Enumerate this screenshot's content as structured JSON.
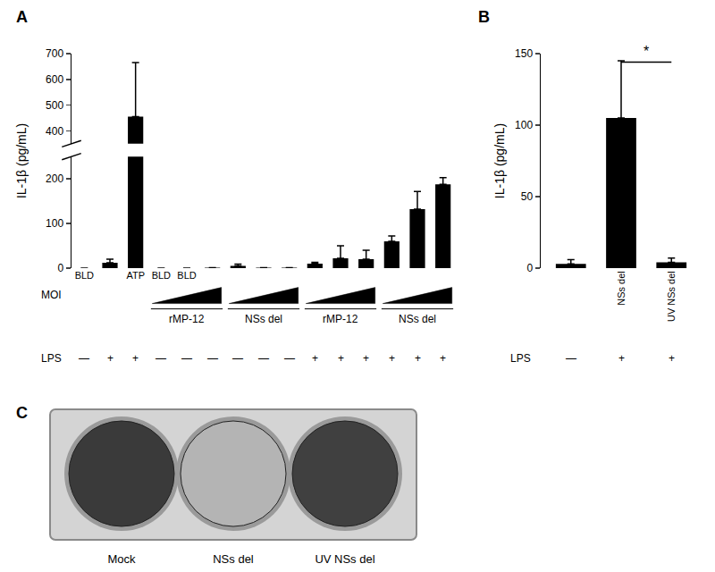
{
  "chart_data": [
    {
      "panel": "A",
      "type": "bar",
      "categories": [
        "BLD",
        null,
        "ATP",
        "BLD",
        "BLD",
        null,
        null,
        null,
        null,
        null,
        null,
        null,
        null,
        null,
        null
      ],
      "values": [
        0,
        12,
        455,
        0,
        0,
        1,
        5,
        1,
        1,
        10,
        22,
        20,
        60,
        132,
        188
      ],
      "errors": [
        0,
        8,
        210,
        0,
        0,
        0,
        4,
        0,
        0,
        3,
        28,
        20,
        12,
        40,
        15
      ],
      "color": "#000000",
      "ylabel": "IL-1β (pg/mL)",
      "ylim": [
        0,
        700
      ],
      "yticks": [
        0,
        100,
        200,
        400,
        500,
        600,
        700
      ],
      "y_break": [
        250,
        350
      ],
      "moi_label": "MOI",
      "lps_label": "LPS",
      "groups": [
        {
          "label": "rMP-12",
          "start": 3,
          "end": 5
        },
        {
          "label": "NSs del",
          "start": 6,
          "end": 8
        },
        {
          "label": "rMP-12",
          "start": 9,
          "end": 11
        },
        {
          "label": "NSs del",
          "start": 12,
          "end": 14
        }
      ],
      "lps": [
        "—",
        "+",
        "+",
        "—",
        "—",
        "—",
        "—",
        "—",
        "—",
        "+",
        "+",
        "+",
        "+",
        "+",
        "+"
      ]
    },
    {
      "panel": "B",
      "type": "bar",
      "categories": [
        null,
        "NSs del",
        "UV NSs del"
      ],
      "values": [
        3,
        105,
        4
      ],
      "errors": [
        3,
        40,
        3
      ],
      "color": "#000000",
      "ylabel": "IL-1β (pg/mL)",
      "ylim": [
        0,
        150
      ],
      "yticks": [
        0,
        50,
        100,
        150
      ],
      "lps_label": "LPS",
      "lps": [
        "—",
        "+",
        "+"
      ],
      "significance": {
        "from": 1,
        "to": 2,
        "label": "*"
      }
    }
  ],
  "panel_c": {
    "panel": "C",
    "wells": [
      {
        "label": "Mock",
        "color": "#3a3a3a"
      },
      {
        "label": "NSs del",
        "color": "#b4b4b4"
      },
      {
        "label": "UV NSs del",
        "color": "#404040"
      }
    ]
  }
}
